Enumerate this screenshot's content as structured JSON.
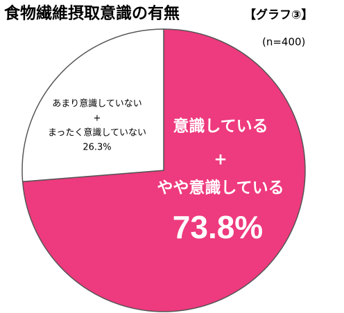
{
  "chart_data": {
    "type": "pie",
    "title": "食物繊維摂取意識の有無",
    "subtitle": "【グラフ③】",
    "note": "(n=400)",
    "categories": [
      [
        "意識している",
        "+",
        "やや意識している"
      ],
      [
        "あまり意識していない",
        "+",
        "まったく意識していない"
      ]
    ],
    "values": [
      73.8,
      26.3
    ],
    "value_labels": [
      "73.8%",
      "26.3%"
    ],
    "colors": [
      "#ee3a7e",
      "#ffffff"
    ]
  }
}
